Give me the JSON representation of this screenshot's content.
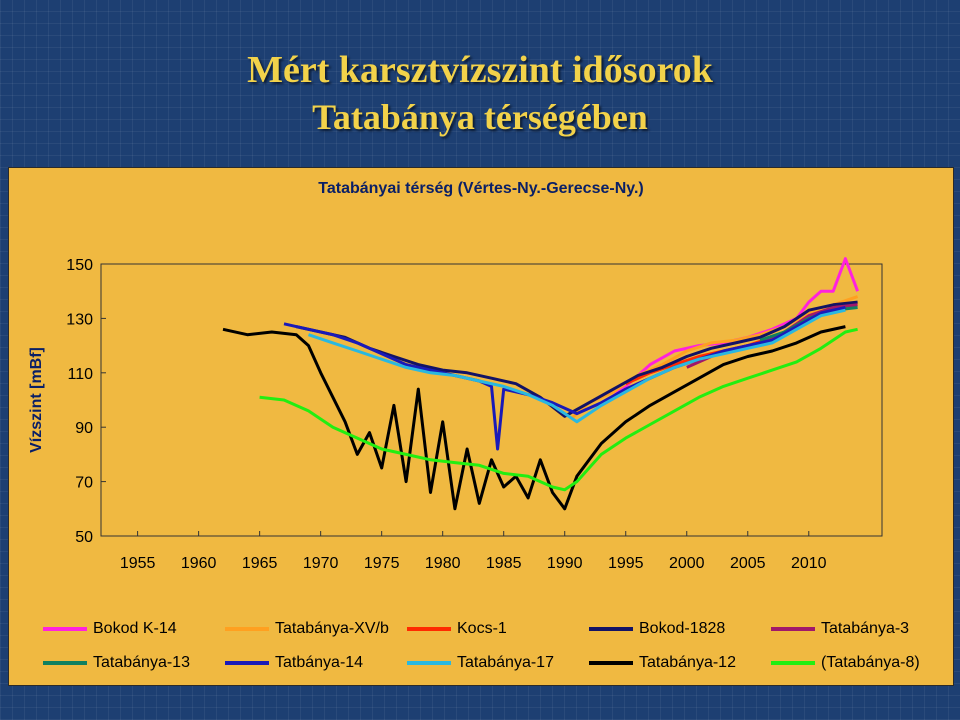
{
  "slide": {
    "title_line1": "Mért karsztvízszint idősorok",
    "title_line2": "Tatabánya térségében"
  },
  "chart_data": {
    "type": "line",
    "title": "Tatabányai térség (Vértes-Ny.-Gerecse-Ny.)",
    "xlabel": "",
    "ylabel": "Vízszint [mBf]",
    "xlim": [
      1952,
      2016
    ],
    "ylim": [
      50,
      150
    ],
    "x_ticks": [
      "1955",
      "1960",
      "1965",
      "1970",
      "1975",
      "1980",
      "1985",
      "1990",
      "1995",
      "2000",
      "2005",
      "2010"
    ],
    "y_ticks": [
      "150",
      "130",
      "110",
      "90",
      "70",
      "50"
    ],
    "grid": false,
    "legend_position": "bottom",
    "series": [
      {
        "name": "Bokod K-14",
        "color": "#ff22dd",
        "x": [
          1993,
          1995,
          1997,
          1999,
          2001,
          2003,
          2005,
          2007,
          2009,
          2010,
          2011,
          2012,
          2013,
          2014
        ],
        "y": [
          98,
          105,
          113,
          118,
          120,
          121,
          123,
          126,
          130,
          136,
          140,
          140,
          152,
          140
        ]
      },
      {
        "name": "Tatabánya-XV/b",
        "color": "#ffa020",
        "x": [
          1990.5,
          1992,
          1994,
          1996,
          1998,
          2000,
          2002,
          2004,
          2006,
          2008,
          2010,
          2012,
          2014
        ],
        "y": [
          93,
          99,
          103,
          109,
          113,
          118,
          121,
          122,
          124,
          127,
          132,
          135,
          138
        ]
      },
      {
        "name": "Kocs-1",
        "color": "#ff2a00",
        "x": [
          1995,
          1997,
          1999,
          2001,
          2003,
          2005,
          2007,
          2009,
          2011,
          2013
        ],
        "y": [
          106,
          110,
          113,
          116,
          118,
          120,
          123,
          127,
          132,
          134
        ]
      },
      {
        "name": "Bokod-1828",
        "color": "#131365",
        "x": [
          1968,
          1970,
          1972,
          1974,
          1976,
          1978,
          1980,
          1982,
          1984,
          1986,
          1988,
          1990,
          1992,
          1994,
          1996,
          1998,
          2000,
          2002,
          2004,
          2006,
          2008,
          2010,
          2012,
          2014
        ],
        "y": [
          127,
          125,
          123,
          119,
          116,
          113,
          111,
          110,
          108,
          106,
          101,
          94,
          99,
          104,
          109,
          112,
          116,
          119,
          121,
          123,
          127,
          133,
          135,
          136
        ]
      },
      {
        "name": "Tatabánya-3",
        "color": "#a0186a",
        "x": [
          2000,
          2002,
          2004,
          2006,
          2008,
          2010,
          2012,
          2014
        ],
        "y": [
          112,
          116,
          119,
          121,
          125,
          131,
          134,
          135
        ]
      },
      {
        "name": "Tatabánya-13",
        "color": "#108060",
        "x": [
          2006,
          2008,
          2010,
          2012,
          2014
        ],
        "y": [
          122,
          125,
          130,
          133,
          134
        ]
      },
      {
        "name": "Tatbánya-14",
        "color": "#1a1ab8",
        "x": [
          1967,
          1969,
          1971,
          1973,
          1975,
          1977,
          1979,
          1981,
          1983,
          1984,
          1984.5,
          1985,
          1987,
          1989,
          1991,
          1993,
          1995,
          1997,
          1999,
          2001,
          2003,
          2005,
          2007,
          2009,
          2011,
          2013
        ],
        "y": [
          128,
          126,
          124,
          121,
          117,
          113,
          111,
          109,
          107,
          105,
          82,
          104,
          102,
          99,
          95,
          99,
          104,
          108,
          112,
          115,
          118,
          120,
          122,
          127,
          132,
          134
        ]
      },
      {
        "name": "Tatabánya-17",
        "color": "#2ab8e0",
        "x": [
          1969,
          1971,
          1973,
          1975,
          1977,
          1979,
          1981,
          1983,
          1985,
          1987,
          1989,
          1991,
          1993,
          1995,
          1997,
          1999,
          2001,
          2003,
          2005,
          2007,
          2009,
          2011,
          2013
        ],
        "y": [
          124,
          121,
          118,
          115,
          112,
          110,
          109,
          107,
          105,
          102,
          98,
          92,
          98,
          103,
          108,
          112,
          115,
          117,
          119,
          121,
          126,
          131,
          133
        ]
      },
      {
        "name": "Tatabánya-12",
        "color": "#000000",
        "x": [
          1962,
          1964,
          1966,
          1968,
          1969,
          1970,
          1971,
          1972,
          1973,
          1974,
          1975,
          1976,
          1977,
          1978,
          1979,
          1980,
          1981,
          1982,
          1983,
          1984,
          1985,
          1986,
          1987,
          1988,
          1989,
          1990,
          1991,
          1993,
          1995,
          1997,
          1999,
          2001,
          2003,
          2005,
          2007,
          2009,
          2011,
          2013
        ],
        "y": [
          126,
          124,
          125,
          124,
          120,
          110,
          101,
          92,
          80,
          88,
          75,
          98,
          70,
          104,
          66,
          92,
          60,
          82,
          62,
          78,
          68,
          72,
          64,
          78,
          66,
          60,
          72,
          84,
          92,
          98,
          103,
          108,
          113,
          116,
          118,
          121,
          125,
          127
        ]
      },
      {
        "name": "(Tatabánya-8)",
        "color": "#22ee11",
        "x": [
          1965,
          1967,
          1969,
          1971,
          1973,
          1975,
          1977,
          1979,
          1981,
          1983,
          1985,
          1987,
          1989,
          1990,
          1991,
          1993,
          1995,
          1997,
          1999,
          2001,
          2003,
          2005,
          2007,
          2009,
          2011,
          2013,
          2014
        ],
        "y": [
          101,
          100,
          96,
          90,
          86,
          82,
          80,
          78,
          77,
          76,
          73,
          72,
          68,
          67,
          70,
          80,
          86,
          91,
          96,
          101,
          105,
          108,
          111,
          114,
          119,
          125,
          126
        ]
      }
    ]
  }
}
